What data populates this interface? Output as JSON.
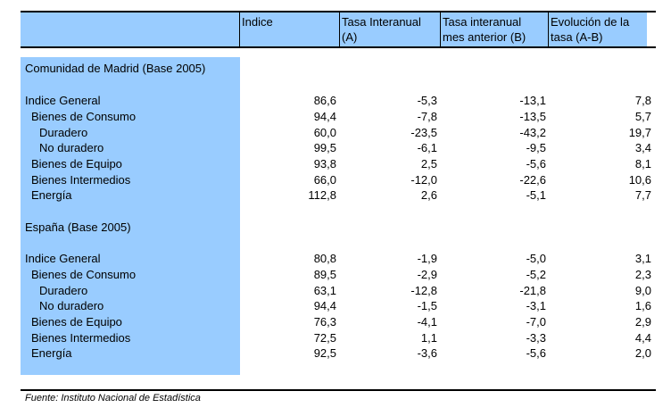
{
  "header": {
    "col1": "Indice",
    "col2_l1": "Tasa Interanual",
    "col2_l2": "(A)",
    "col3_l1": "Tasa interanual",
    "col3_l2": "mes anterior (B)",
    "col4_l1": "Evolución de la",
    "col4_l2": "tasa (A-B)"
  },
  "sections": [
    {
      "title": "Comunidad de Madrid (Base 2005)",
      "rows": [
        {
          "label": "Indice General",
          "indent": 0,
          "v": [
            "86,6",
            "-5,3",
            "-13,1",
            "7,8"
          ]
        },
        {
          "label": "Bienes de Consumo",
          "indent": 1,
          "v": [
            "94,4",
            "-7,8",
            "-13,5",
            "5,7"
          ]
        },
        {
          "label": "Duradero",
          "indent": 2,
          "v": [
            "60,0",
            "-23,5",
            "-43,2",
            "19,7"
          ]
        },
        {
          "label": "No duradero",
          "indent": 2,
          "v": [
            "99,5",
            "-6,1",
            "-9,5",
            "3,4"
          ]
        },
        {
          "label": "Bienes de Equipo",
          "indent": 1,
          "v": [
            "93,8",
            "2,5",
            "-5,6",
            "8,1"
          ]
        },
        {
          "label": "Bienes Intermedios",
          "indent": 1,
          "v": [
            "66,0",
            "-12,0",
            "-22,6",
            "10,6"
          ]
        },
        {
          "label": "Energía",
          "indent": 1,
          "v": [
            "112,8",
            "2,6",
            "-5,1",
            "7,7"
          ]
        }
      ]
    },
    {
      "title": "España (Base 2005)",
      "rows": [
        {
          "label": "Indice General",
          "indent": 0,
          "v": [
            "80,8",
            "-1,9",
            "-5,0",
            "3,1"
          ]
        },
        {
          "label": "Bienes de Consumo",
          "indent": 1,
          "v": [
            "89,5",
            "-2,9",
            "-5,2",
            "2,3"
          ]
        },
        {
          "label": "Duradero",
          "indent": 2,
          "v": [
            "63,1",
            "-12,8",
            "-21,8",
            "9,0"
          ]
        },
        {
          "label": "No duradero",
          "indent": 2,
          "v": [
            "94,4",
            "-1,5",
            "-3,1",
            "1,6"
          ]
        },
        {
          "label": "Bienes de Equipo",
          "indent": 1,
          "v": [
            "76,3",
            "-4,1",
            "-7,0",
            "2,9"
          ]
        },
        {
          "label": "Bienes Intermedios",
          "indent": 1,
          "v": [
            "72,5",
            "1,1",
            "-3,3",
            "4,4"
          ]
        },
        {
          "label": "Energía",
          "indent": 1,
          "v": [
            "92,5",
            "-3,6",
            "-5,6",
            "2,0"
          ]
        }
      ]
    }
  ],
  "source": "Fuente: Instituto Nacional de Estadística"
}
